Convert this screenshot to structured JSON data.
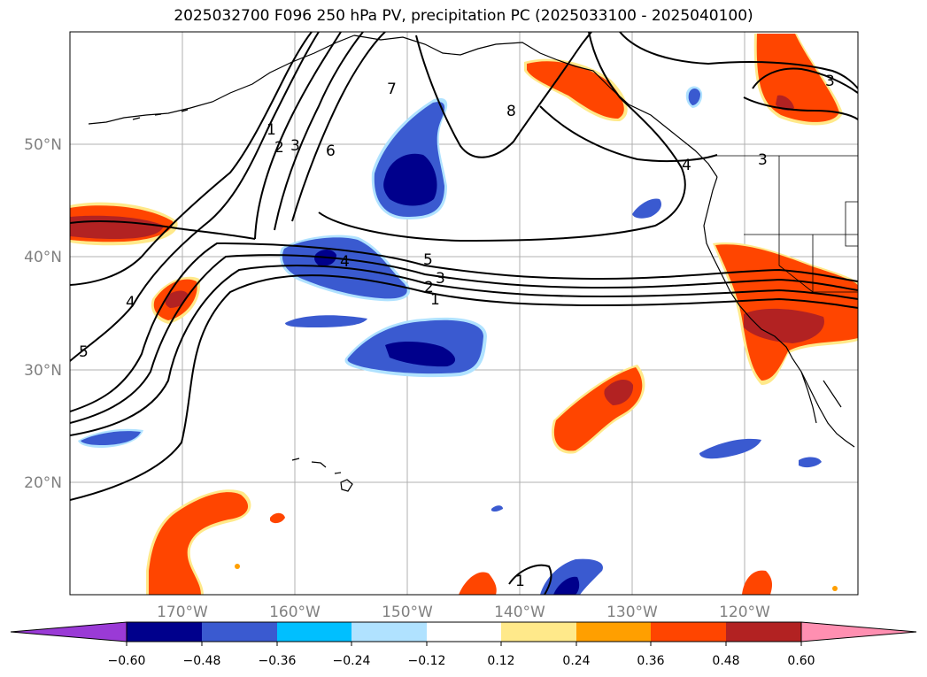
{
  "title": "2025032700 F096 250 hPa PV, precipitation PC (2025033100 - 2025040100)",
  "map": {
    "lat_labels": [
      "50°N",
      "40°N",
      "30°N",
      "20°N"
    ],
    "lon_labels": [
      "170°W",
      "160°W",
      "150°W",
      "140°W",
      "130°W",
      "120°W"
    ],
    "gridlines": true
  },
  "colorbar": {
    "ticks": [
      "−0.60",
      "−0.48",
      "−0.36",
      "−0.24",
      "−0.12",
      "0.12",
      "0.24",
      "0.36",
      "0.48",
      "0.60"
    ],
    "colors": {
      "under": "#9a3ad6",
      "c1": "#00008c",
      "c2": "#3a5ad0",
      "c3": "#00bfff",
      "c4": "#b0e2ff",
      "c5": "#ffffff",
      "c6": "#ffe98a",
      "c7": "#ff9f00",
      "c8": "#ff4500",
      "c9": "#b22222",
      "over": "#ff8fb1"
    }
  },
  "contour_labels": [
    "1",
    "2",
    "3",
    "6",
    "7",
    "8",
    "4",
    "5",
    "2",
    "3",
    "1",
    "4",
    "5",
    "3",
    "3",
    "4",
    "1"
  ]
}
